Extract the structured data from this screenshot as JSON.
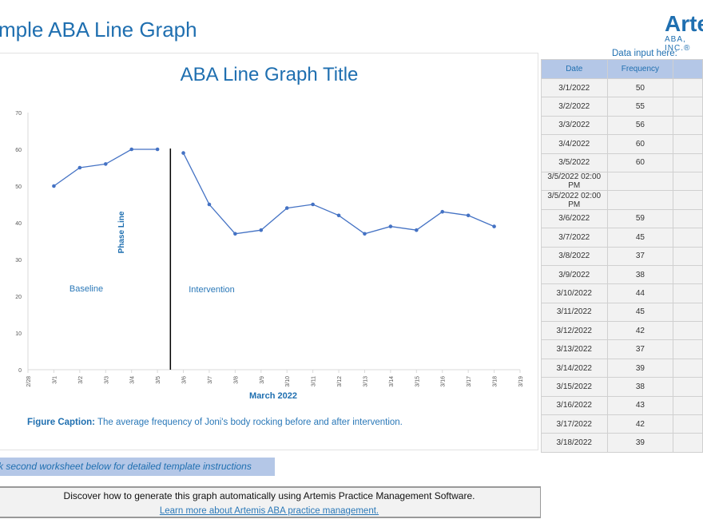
{
  "sheet_title": "mple ABA Line Graph",
  "logo": {
    "name": "Arte",
    "sub": "ABA, INC.®"
  },
  "chart_data": {
    "type": "line",
    "title": "ABA Line Graph Title",
    "xlabel": "March 2022",
    "ylabel": "",
    "ylim": [
      0,
      70
    ],
    "yticks": [
      0,
      10,
      20,
      30,
      40,
      50,
      60,
      70
    ],
    "xticks": [
      "2/28",
      "3/1",
      "3/2",
      "3/3",
      "3/4",
      "3/5",
      "3/6",
      "3/7",
      "3/8",
      "3/9",
      "3/10",
      "3/11",
      "3/12",
      "3/13",
      "3/14",
      "3/15",
      "3/16",
      "3/17",
      "3/18",
      "3/19"
    ],
    "series": [
      {
        "x": [
          "3/1",
          "3/2",
          "3/3",
          "3/4",
          "3/5"
        ],
        "values": [
          50,
          55,
          56,
          60,
          60
        ]
      },
      {
        "x": [
          "3/6",
          "3/7",
          "3/8",
          "3/9",
          "3/10",
          "3/11",
          "3/12",
          "3/13",
          "3/14",
          "3/15",
          "3/16",
          "3/17",
          "3/18"
        ],
        "values": [
          59,
          45,
          37,
          38,
          44,
          45,
          42,
          37,
          39,
          38,
          43,
          42,
          39
        ]
      }
    ],
    "phase_line": {
      "label": "Phase Line",
      "between": [
        "3/5",
        "3/6"
      ]
    },
    "annotations": [
      "Baseline",
      "Intervention"
    ],
    "grid": false,
    "line_color": "#4472c4"
  },
  "caption": {
    "label": "Figure Caption:",
    "text": " The average frequency of Joni's body rocking before and after intervention."
  },
  "table": {
    "label": "Data input here:",
    "headers": [
      "Date",
      "Frequency",
      ""
    ],
    "rows": [
      [
        "3/1/2022",
        "50"
      ],
      [
        "3/2/2022",
        "55"
      ],
      [
        "3/3/2022",
        "56"
      ],
      [
        "3/4/2022",
        "60"
      ],
      [
        "3/5/2022",
        "60"
      ],
      [
        "3/5/2022 02:00 PM",
        ""
      ],
      [
        "3/5/2022 02:00 PM",
        ""
      ],
      [
        "3/6/2022",
        "59"
      ],
      [
        "3/7/2022",
        "45"
      ],
      [
        "3/8/2022",
        "37"
      ],
      [
        "3/9/2022",
        "38"
      ],
      [
        "3/10/2022",
        "44"
      ],
      [
        "3/11/2022",
        "45"
      ],
      [
        "3/12/2022",
        "42"
      ],
      [
        "3/13/2022",
        "37"
      ],
      [
        "3/14/2022",
        "39"
      ],
      [
        "3/15/2022",
        "38"
      ],
      [
        "3/16/2022",
        "43"
      ],
      [
        "3/17/2022",
        "42"
      ],
      [
        "3/18/2022",
        "39"
      ]
    ]
  },
  "instructions": "k second worksheet below for detailed template instructions",
  "promo": {
    "text": "Discover how to generate this graph automatically using Artemis Practice Management Software.",
    "link": "Learn more about Artemis ABA practice management."
  }
}
